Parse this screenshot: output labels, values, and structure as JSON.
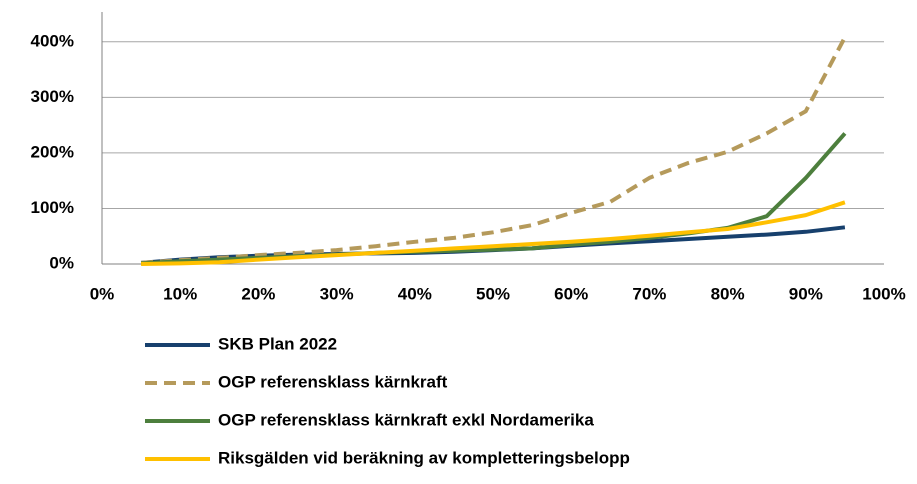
{
  "chart_data": {
    "type": "line",
    "x": [
      5,
      10,
      15,
      20,
      25,
      30,
      35,
      40,
      45,
      50,
      55,
      60,
      65,
      70,
      75,
      80,
      85,
      90,
      95
    ],
    "xlim": [
      0,
      100
    ],
    "xticks": [
      {
        "value": 0,
        "label": "0%"
      },
      {
        "value": 10,
        "label": "10%"
      },
      {
        "value": 20,
        "label": "20%"
      },
      {
        "value": 30,
        "label": "30%"
      },
      {
        "value": 40,
        "label": "40%"
      },
      {
        "value": 50,
        "label": "50%"
      },
      {
        "value": 60,
        "label": "60%"
      },
      {
        "value": 70,
        "label": "70%"
      },
      {
        "value": 80,
        "label": "80%"
      },
      {
        "value": 90,
        "label": "90%"
      },
      {
        "value": 100,
        "label": "100%"
      }
    ],
    "ylim": [
      0,
      450
    ],
    "yticks": [
      {
        "value": 0,
        "label": "0%"
      },
      {
        "value": 100,
        "label": "100%"
      },
      {
        "value": 200,
        "label": "200%"
      },
      {
        "value": 300,
        "label": "300%"
      },
      {
        "value": 400,
        "label": "400%"
      }
    ],
    "grid": true,
    "series": [
      {
        "name": "SKB Plan 2022",
        "color": "#17406d",
        "line_style": "solid",
        "values": [
          2,
          8,
          12,
          15,
          17,
          18,
          19,
          20,
          22,
          25,
          28,
          33,
          37,
          41,
          45,
          49,
          53,
          58,
          66
        ]
      },
      {
        "name": "OGP referensklass kärnkraft",
        "color": "#b59a5b",
        "line_style": "dashed",
        "values": [
          2,
          7,
          11,
          16,
          20,
          25,
          32,
          40,
          47,
          57,
          70,
          92,
          112,
          155,
          182,
          202,
          235,
          275,
          408
        ]
      },
      {
        "name": "OGP referensklass kärnkraft exkl Nordamerika",
        "color": "#4d7f3d",
        "line_style": "solid",
        "values": [
          1,
          5,
          8,
          11,
          14,
          17,
          20,
          22,
          24,
          26,
          28,
          35,
          40,
          47,
          55,
          65,
          86,
          155,
          235
        ]
      },
      {
        "name": "Riksgälden vid beräkning av kompletteringsbelopp",
        "color": "#ffc000",
        "line_style": "solid",
        "values": [
          0,
          1,
          3,
          8,
          12,
          16,
          20,
          24,
          28,
          32,
          36,
          40,
          45,
          51,
          57,
          63,
          75,
          88,
          111
        ]
      }
    ]
  }
}
